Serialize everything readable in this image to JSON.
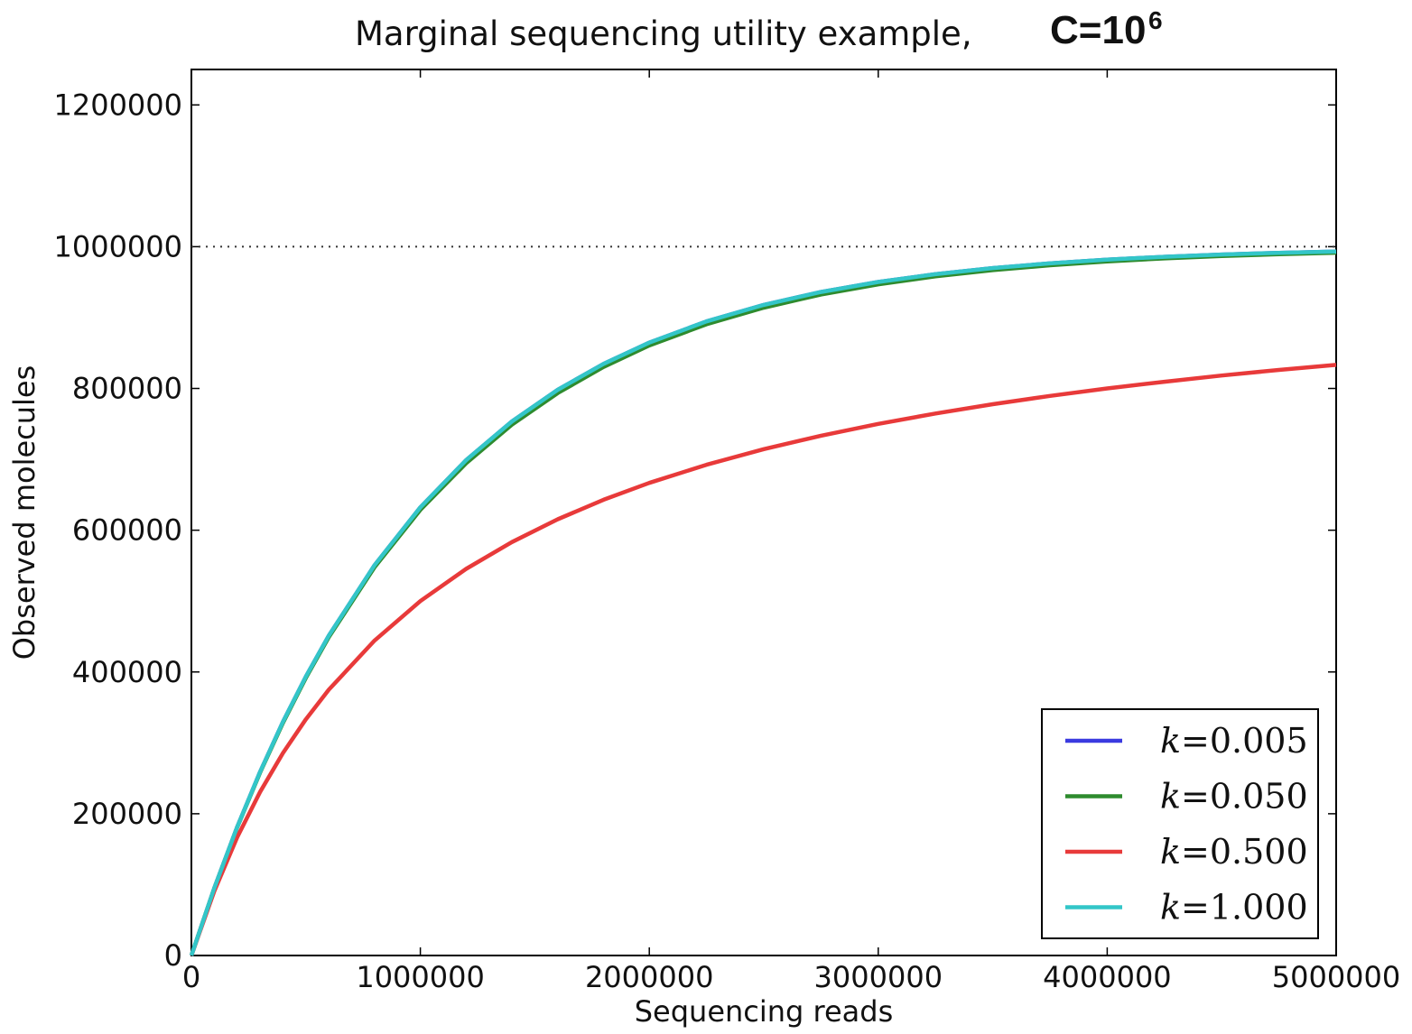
{
  "chart_data": {
    "type": "line",
    "title": "Marginal sequencing utility example,",
    "title_emphasis": "C=10",
    "title_superscript": "6",
    "xlabel": "Sequencing reads",
    "ylabel": "Observed molecules",
    "xlim": [
      0,
      5000000
    ],
    "ylim": [
      0,
      1250000
    ],
    "xticks": [
      0,
      1000000,
      2000000,
      3000000,
      4000000,
      5000000
    ],
    "xtick_labels": [
      "0",
      "1000000",
      "2000000",
      "3000000",
      "4000000",
      "5000000"
    ],
    "yticks": [
      0,
      200000,
      400000,
      600000,
      800000,
      1000000,
      1200000
    ],
    "ytick_labels": [
      "0",
      "200000",
      "400000",
      "600000",
      "800000",
      "1000000",
      "1200000"
    ],
    "reference_line": {
      "y": 1000000,
      "style": "dotted",
      "color": "#333333"
    },
    "legend": {
      "position": "bottom-right"
    },
    "grid": false,
    "x": [
      0,
      100000,
      200000,
      300000,
      400000,
      500000,
      600000,
      800000,
      1000000,
      1200000,
      1400000,
      1600000,
      1800000,
      2000000,
      2250000,
      2500000,
      2750000,
      3000000,
      3250000,
      3500000,
      3750000,
      4000000,
      4250000,
      4500000,
      4750000,
      5000000
    ],
    "series": [
      {
        "name": "k=0.005",
        "name_var": "k",
        "name_value": "=0.005",
        "color": "#3a3ae0",
        "values": [
          0,
          95200,
          181300,
          259200,
          329700,
          393500,
          451200,
          550700,
          632300,
          698800,
          753400,
          798100,
          834700,
          864700,
          894600,
          917900,
          936100,
          950200,
          961200,
          969800,
          976500,
          981700,
          985700,
          988900,
          991300,
          993300
        ]
      },
      {
        "name": "k=0.050",
        "name_var": "k",
        "name_value": "=0.050",
        "color": "#2e8b2e",
        "values": [
          0,
          95000,
          180700,
          258200,
          328200,
          391700,
          449100,
          547800,
          628700,
          694500,
          748800,
          793500,
          830300,
          860600,
          890500,
          914000,
          932500,
          946900,
          958100,
          966900,
          973800,
          979200,
          983400,
          986800,
          989400,
          991500
        ]
      },
      {
        "name": "k=0.500",
        "name_var": "k",
        "name_value": "=0.500",
        "color": "#e83a3a",
        "values": [
          0,
          90900,
          166700,
          230800,
          285700,
          333300,
          375000,
          444400,
          500000,
          545500,
          583300,
          615400,
          642900,
          666700,
          692300,
          714300,
          733300,
          750000,
          764700,
          777800,
          789500,
          800000,
          809500,
          818200,
          826100,
          833300
        ]
      },
      {
        "name": "k=1.000",
        "name_var": "k",
        "name_value": "=1.000",
        "color": "#33c6c8",
        "values": [
          0,
          95200,
          181300,
          259200,
          329700,
          393500,
          451200,
          550700,
          632300,
          698800,
          753400,
          798100,
          834700,
          864700,
          894600,
          917900,
          936100,
          950200,
          961200,
          969800,
          976500,
          981700,
          985700,
          988900,
          991300,
          993300
        ]
      }
    ]
  }
}
